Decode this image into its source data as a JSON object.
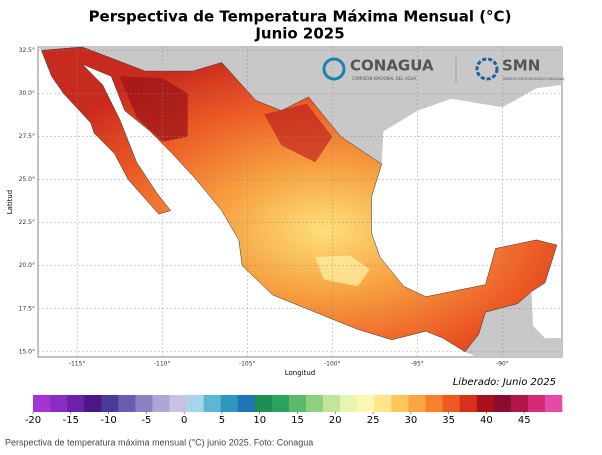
{
  "title": "Perspectiva de Temperatura Máxima Mensual (°C)",
  "subtitle": "Junio 2025",
  "logos": {
    "conagua": "CONAGUA",
    "conagua_sub": "COMISIÓN NACIONAL DEL AGUA",
    "smn": "SMN",
    "smn_sub": "SERVICIO METEOROLÓGICO NACIONAL"
  },
  "map": {
    "x_label": "Longitud",
    "y_label": "Latitud",
    "xlim": [
      -117.3,
      -86.5
    ],
    "ylim": [
      14.7,
      32.7
    ],
    "xticks": [
      {
        "value": -115,
        "label": "-115°"
      },
      {
        "value": -110,
        "label": "-110°"
      },
      {
        "value": -105,
        "label": "-105°"
      },
      {
        "value": -100,
        "label": "-100°"
      },
      {
        "value": -95,
        "label": "-95°"
      },
      {
        "value": -90,
        "label": "-90°"
      }
    ],
    "yticks": [
      {
        "value": 32.5,
        "label": "32.5°"
      },
      {
        "value": 30,
        "label": "30.0°"
      },
      {
        "value": 27.5,
        "label": "27.5°"
      },
      {
        "value": 25,
        "label": "25.0°"
      },
      {
        "value": 22.5,
        "label": "22.5°"
      },
      {
        "value": 20,
        "label": "20.0°"
      },
      {
        "value": 17.5,
        "label": "17.5°"
      },
      {
        "value": 15,
        "label": "15.0°"
      }
    ],
    "grid": true
  },
  "released": "Liberado: Junio 2025",
  "colorbar": {
    "lim": [
      -20,
      50
    ],
    "colors": [
      "#a533d6",
      "#8a2cc4",
      "#6a22a8",
      "#4a1787",
      "#4b3a9a",
      "#6b5cb0",
      "#8b82c2",
      "#aea7d6",
      "#c7c2e4",
      "#a8d4ea",
      "#5cb8d0",
      "#2e97c0",
      "#1f74b4",
      "#1d8f52",
      "#2ca25f",
      "#5cb86b",
      "#8fd07e",
      "#c2e59a",
      "#e6f5b0",
      "#fdf7b6",
      "#fde68a",
      "#fdc55a",
      "#fca43f",
      "#f5812c",
      "#ea5a22",
      "#d9301c",
      "#a8111c",
      "#8a0c2a",
      "#b21648",
      "#d42a78",
      "#e64aa8"
    ],
    "ticks": [
      -20,
      -15,
      -10,
      -5,
      0,
      5,
      10,
      15,
      20,
      25,
      30,
      35,
      40,
      45
    ]
  },
  "caption": "Perspectiva de temperatura máxima mensual (°C) junio 2025. Foto: Conagua"
}
